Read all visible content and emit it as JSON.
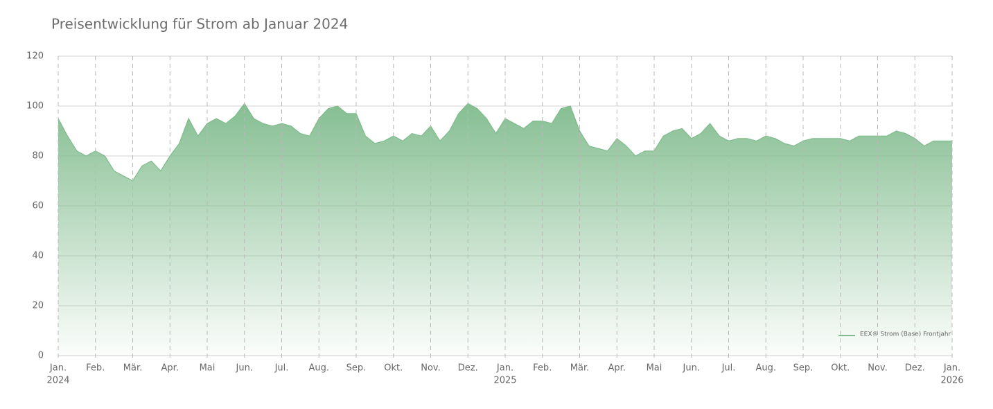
{
  "chart_data": {
    "type": "area",
    "title": "Preisentwicklung für Strom ab Januar 2024",
    "categories": [
      "Jan.",
      null,
      null,
      null,
      "Feb.",
      null,
      null,
      null,
      "Mär.",
      null,
      null,
      null,
      "Apr.",
      null,
      null,
      null,
      "Mai",
      null,
      null,
      null,
      "Jun.",
      null,
      null,
      null,
      "Jul.",
      null,
      null,
      null,
      "Aug.",
      null,
      null,
      null,
      "Sep.",
      null,
      null,
      null,
      "Okt.",
      null,
      null,
      null,
      "Nov.",
      null,
      null,
      null,
      "Dez.",
      null,
      null,
      null,
      "Jan.",
      null,
      null,
      null,
      "Feb.",
      null,
      null,
      null,
      "Mär.",
      null,
      null,
      null,
      "Apr.",
      null,
      null,
      null,
      "Mai",
      null,
      null,
      null,
      "Jun.",
      null,
      null,
      null,
      "Jul.",
      null,
      null,
      null,
      "Aug.",
      null,
      null,
      null,
      "Sep.",
      null,
      null,
      null,
      "Okt.",
      null,
      null,
      null,
      "Nov.",
      null,
      null,
      null,
      "Dez.",
      null,
      null,
      null,
      "Jan."
    ],
    "years": [
      "2024",
      "2025",
      "2026"
    ],
    "series": [
      {
        "name": "EEX® Strom (Base) Frontjahr",
        "color": "#7fbb8c",
        "values": [
          95,
          88,
          82,
          80,
          82,
          80,
          74,
          72,
          70,
          76,
          78,
          74,
          80,
          85,
          95,
          88,
          93,
          95,
          93,
          96,
          101,
          95,
          93,
          92,
          93,
          92,
          89,
          88,
          95,
          99,
          100,
          97,
          97,
          88,
          85,
          86,
          88,
          86,
          89,
          88,
          92,
          86,
          90,
          97,
          101,
          99,
          95,
          89,
          95,
          93,
          91,
          94,
          94,
          93,
          99,
          100,
          90,
          84,
          83,
          82,
          87,
          84,
          80,
          82,
          82,
          88,
          90,
          91,
          87,
          89,
          93,
          88,
          86,
          87,
          87,
          86,
          88,
          87,
          85,
          84,
          86,
          87,
          87,
          87,
          87,
          86,
          88,
          88,
          88,
          88,
          90,
          89,
          87,
          84,
          86,
          86,
          86
        ]
      }
    ],
    "ylim": [
      0,
      120
    ],
    "yticks": [
      0,
      20,
      40,
      60,
      80,
      100,
      120
    ],
    "grid": true,
    "legend": "bottom-right"
  }
}
